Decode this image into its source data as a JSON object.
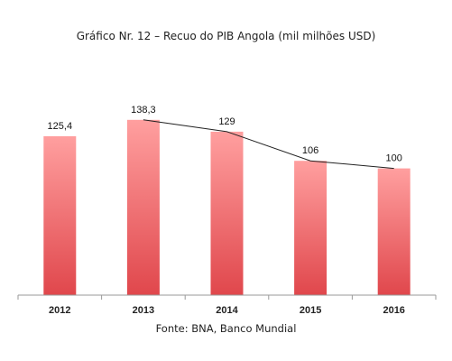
{
  "chart_data": {
    "type": "bar",
    "title": "Gráfico Nr. 12 – Recuo do PIB Angola (mil milhões USD)",
    "source": "Fonte: BNA, Banco Mundial",
    "categories": [
      "2012",
      "2013",
      "2014",
      "2015",
      "2016"
    ],
    "values": [
      125.4,
      138.3,
      129,
      106,
      100
    ],
    "value_labels": [
      "125,4",
      "138,3",
      "129",
      "106",
      "100"
    ],
    "trend_line": {
      "type": "line",
      "categories": [
        "2013",
        "2014",
        "2015",
        "2016"
      ],
      "values": [
        138.3,
        129,
        106,
        100
      ]
    },
    "ylim": [
      0,
      160
    ],
    "grid": false,
    "legend": "none",
    "xlabel": "",
    "ylabel": ""
  },
  "colors": {
    "bar_top": "#ff9f9f",
    "bar_bottom": "#e0474c",
    "trend_line": "#222222",
    "axis": "#9a9a9a"
  }
}
